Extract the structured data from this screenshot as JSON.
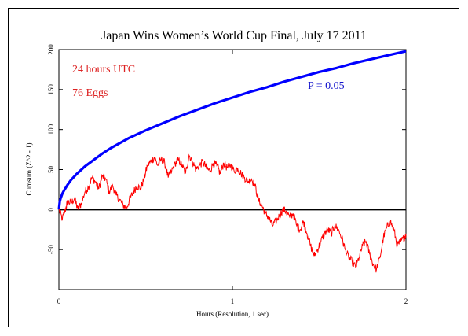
{
  "chart_data": {
    "type": "line",
    "title": "Japan Wins Women’s World Cup Final, July 17 2011",
    "xlabel": "Hours (Resolution, 1 sec)",
    "ylabel": "Cumsum (Z^2 - 1)",
    "xlim": [
      0,
      2
    ],
    "ylim": [
      -100,
      200
    ],
    "x_ticks": [
      0,
      1,
      2
    ],
    "x_tick_labels": [
      "0",
      "1",
      "2"
    ],
    "y_ticks": [
      -50,
      0,
      50,
      100,
      150,
      200
    ],
    "y_tick_labels": [
      "-50",
      "0",
      "50",
      "100",
      "150",
      "200"
    ],
    "annotations": [
      "24 hours UTC",
      "76 Eggs"
    ],
    "zero_line": 0,
    "series": [
      {
        "color": "#ff0000",
        "x": [
          0,
          0.02,
          0.04,
          0.05,
          0.07,
          0.09,
          0.11,
          0.13,
          0.15,
          0.17,
          0.19,
          0.21,
          0.23,
          0.25,
          0.27,
          0.29,
          0.31,
          0.33,
          0.35,
          0.37,
          0.39,
          0.41,
          0.43,
          0.45,
          0.47,
          0.49,
          0.51,
          0.53,
          0.55,
          0.57,
          0.59,
          0.61,
          0.63,
          0.65,
          0.67,
          0.69,
          0.71,
          0.73,
          0.75,
          0.77,
          0.79,
          0.81,
          0.83,
          0.85,
          0.87,
          0.89,
          0.91,
          0.93,
          0.95,
          0.97,
          0.99,
          1.01,
          1.03,
          1.05,
          1.07,
          1.09,
          1.11,
          1.13,
          1.15,
          1.17,
          1.19,
          1.21,
          1.23,
          1.25,
          1.27,
          1.29,
          1.31,
          1.33,
          1.35,
          1.37,
          1.39,
          1.41,
          1.43,
          1.45,
          1.47,
          1.49,
          1.51,
          1.53,
          1.55,
          1.57,
          1.59,
          1.61,
          1.63,
          1.65,
          1.67,
          1.69,
          1.71,
          1.73,
          1.75,
          1.77,
          1.79,
          1.81,
          1.83,
          1.85,
          1.87,
          1.89,
          1.91,
          1.93,
          1.95,
          1.97,
          1.99,
          2.0
        ],
        "y": [
          0,
          -12,
          2,
          10,
          8,
          14,
          0,
          8,
          22,
          28,
          40,
          35,
          26,
          42,
          38,
          22,
          30,
          18,
          12,
          6,
          2,
          14,
          22,
          30,
          26,
          38,
          55,
          60,
          65,
          55,
          63,
          58,
          40,
          48,
          58,
          62,
          55,
          45,
          68,
          60,
          50,
          55,
          60,
          52,
          48,
          58,
          55,
          45,
          58,
          52,
          56,
          48,
          52,
          45,
          40,
          35,
          38,
          30,
          12,
          5,
          -5,
          -10,
          -20,
          -15,
          -8,
          0,
          -2,
          -10,
          -5,
          -20,
          -25,
          -15,
          -30,
          -45,
          -58,
          -50,
          -40,
          -30,
          -25,
          -30,
          -20,
          -25,
          -35,
          -50,
          -60,
          -65,
          -72,
          -60,
          -45,
          -40,
          -55,
          -68,
          -75,
          -60,
          -35,
          -22,
          -15,
          -25,
          -45,
          -40,
          -35,
          -30
        ]
      },
      {
        "name": "P = 0.05",
        "color": "#0000ff",
        "x": [
          0,
          0.005,
          0.01,
          0.02,
          0.03,
          0.05,
          0.07,
          0.1,
          0.15,
          0.2,
          0.25,
          0.3,
          0.4,
          0.5,
          0.6,
          0.7,
          0.8,
          0.9,
          1.0,
          1.1,
          1.2,
          1.3,
          1.4,
          1.5,
          1.6,
          1.7,
          1.8,
          1.9,
          2.0
        ],
        "y": [
          0,
          10,
          14,
          20,
          24,
          31,
          37,
          44,
          54,
          62,
          70,
          77,
          89,
          99,
          108,
          117,
          125,
          133,
          140,
          147,
          153,
          160,
          166,
          172,
          177,
          183,
          188,
          193,
          198
        ]
      }
    ]
  }
}
